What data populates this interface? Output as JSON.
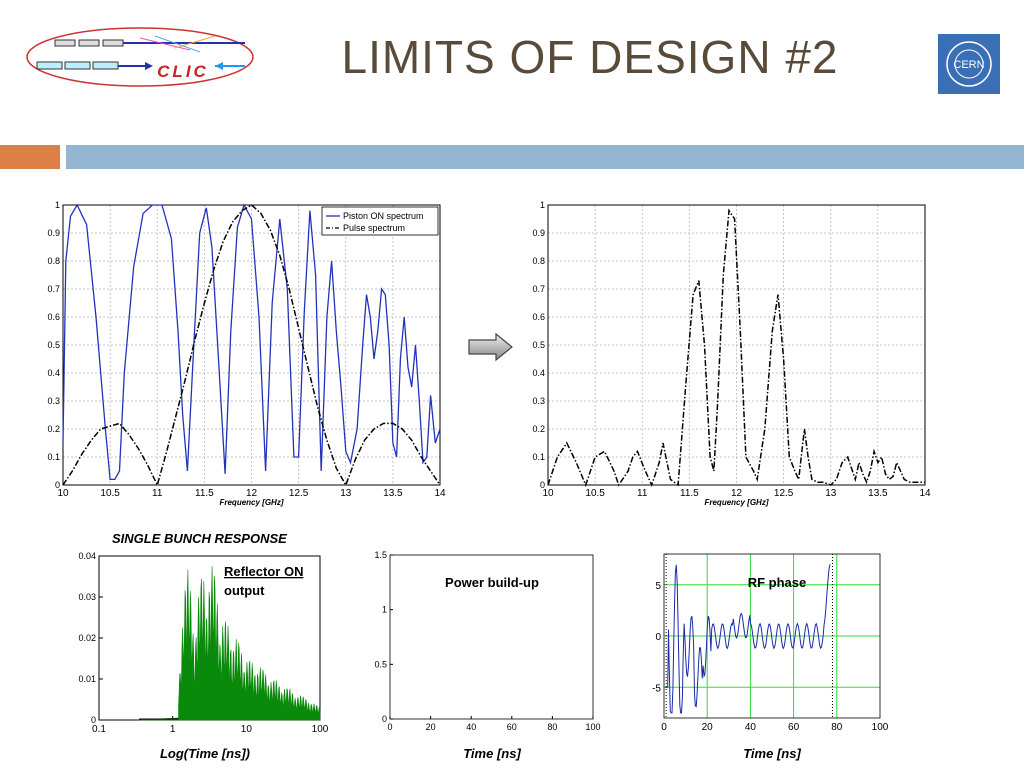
{
  "slide": {
    "title": "LIMITS OF DESIGN #2",
    "logo_left_text": "CLIC",
    "logo_right_text": "CERN",
    "single_bunch_label": "SINGLE BUNCH RESPONSE"
  },
  "colors": {
    "title": "#5a4a3a",
    "orange_accent": "#dd8047",
    "blue_accent": "#94b6d2",
    "piston_line": "#2233bb",
    "bunch_fill": "#0a8a0a",
    "rf_grid": "#33dd33"
  },
  "chart_data": [
    {
      "type": "line",
      "xlabel": "Frequency [GHz]",
      "xlim": [
        10,
        14
      ],
      "ylim": [
        0,
        1
      ],
      "xticks": [
        "10",
        "10.5",
        "11",
        "11.5",
        "12",
        "12.5",
        "13",
        "13.5",
        "14"
      ],
      "yticks": [
        "0",
        "0.1",
        "0.2",
        "0.3",
        "0.4",
        "0.5",
        "0.6",
        "0.7",
        "0.8",
        "0.9",
        "1"
      ],
      "grid": true,
      "legend_position": "top-right",
      "series": [
        {
          "name": "Piston ON spectrum",
          "x": [
            10.0,
            10.03,
            10.08,
            10.15,
            10.25,
            10.35,
            10.45,
            10.5,
            10.55,
            10.6,
            10.65,
            10.75,
            10.85,
            10.95,
            11.05,
            11.15,
            11.22,
            11.27,
            11.32,
            11.38,
            11.45,
            11.52,
            11.58,
            11.65,
            11.72,
            11.78,
            11.85,
            11.92,
            12.0,
            12.08,
            12.15,
            12.22,
            12.3,
            12.38,
            12.45,
            12.5,
            12.56,
            12.62,
            12.68,
            12.74,
            12.8,
            12.85,
            12.9,
            12.95,
            13.0,
            13.05,
            13.12,
            13.18,
            13.22,
            13.26,
            13.3,
            13.34,
            13.38,
            13.42,
            13.46,
            13.5,
            13.54,
            13.58,
            13.62,
            13.66,
            13.7,
            13.74,
            13.78,
            13.82,
            13.86,
            13.9,
            13.95,
            14.0
          ],
          "y": [
            0.15,
            0.8,
            0.96,
            1.0,
            0.93,
            0.6,
            0.2,
            0.02,
            0.02,
            0.05,
            0.4,
            0.78,
            0.97,
            1.0,
            1.0,
            0.88,
            0.55,
            0.25,
            0.05,
            0.45,
            0.9,
            0.99,
            0.85,
            0.45,
            0.04,
            0.55,
            0.92,
            1.0,
            0.95,
            0.6,
            0.05,
            0.65,
            0.95,
            0.7,
            0.1,
            0.1,
            0.62,
            0.98,
            0.75,
            0.05,
            0.6,
            0.8,
            0.55,
            0.35,
            0.12,
            0.08,
            0.2,
            0.5,
            0.68,
            0.6,
            0.45,
            0.55,
            0.7,
            0.68,
            0.5,
            0.15,
            0.1,
            0.45,
            0.6,
            0.42,
            0.35,
            0.5,
            0.3,
            0.08,
            0.1,
            0.32,
            0.15,
            0.2
          ]
        },
        {
          "name": "Pulse spectrum",
          "x": [
            10.0,
            10.1,
            10.2,
            10.3,
            10.4,
            10.5,
            10.6,
            10.7,
            10.8,
            10.9,
            11.0,
            11.1,
            11.2,
            11.3,
            11.4,
            11.5,
            11.6,
            11.7,
            11.8,
            11.9,
            12.0,
            12.1,
            12.2,
            12.3,
            12.4,
            12.5,
            12.6,
            12.7,
            12.8,
            12.9,
            13.0,
            13.1,
            13.2,
            13.3,
            13.4,
            13.5,
            13.6,
            13.7,
            13.8,
            13.9,
            14.0
          ],
          "y": [
            0.0,
            0.05,
            0.11,
            0.16,
            0.2,
            0.21,
            0.22,
            0.18,
            0.13,
            0.07,
            0.0,
            0.12,
            0.25,
            0.38,
            0.52,
            0.65,
            0.77,
            0.87,
            0.94,
            0.98,
            1.0,
            0.97,
            0.91,
            0.82,
            0.7,
            0.56,
            0.42,
            0.28,
            0.16,
            0.06,
            0.0,
            0.09,
            0.16,
            0.2,
            0.22,
            0.22,
            0.2,
            0.16,
            0.1,
            0.05,
            0.0
          ]
        }
      ]
    },
    {
      "type": "line",
      "xlabel": "Frequency [GHz]",
      "xlim": [
        10,
        14
      ],
      "ylim": [
        0,
        1
      ],
      "xticks": [
        "10",
        "10.5",
        "11",
        "11.5",
        "12",
        "12.5",
        "13",
        "13.5",
        "14"
      ],
      "yticks": [
        "0",
        "0.1",
        "0.2",
        "0.3",
        "0.4",
        "0.5",
        "0.6",
        "0.7",
        "0.8",
        "0.9",
        "1"
      ],
      "grid": true,
      "series": [
        {
          "x": [
            10.0,
            10.1,
            10.2,
            10.3,
            10.4,
            10.42,
            10.5,
            10.6,
            10.7,
            10.75,
            10.85,
            10.9,
            10.95,
            11.02,
            11.1,
            11.18,
            11.22,
            11.3,
            11.38,
            11.46,
            11.54,
            11.6,
            11.66,
            11.72,
            11.76,
            11.8,
            11.86,
            11.92,
            11.98,
            12.04,
            12.1,
            12.18,
            12.22,
            12.3,
            12.38,
            12.44,
            12.5,
            12.56,
            12.62,
            12.66,
            12.72,
            12.76,
            12.8,
            12.86,
            12.92,
            13.0,
            13.06,
            13.12,
            13.18,
            13.22,
            13.26,
            13.3,
            13.34,
            13.38,
            13.42,
            13.46,
            13.5,
            13.54,
            13.58,
            13.62,
            13.66,
            13.7,
            13.74,
            13.78,
            13.84,
            13.9,
            14.0
          ],
          "y": [
            0.0,
            0.1,
            0.15,
            0.08,
            0.0,
            0.02,
            0.1,
            0.12,
            0.05,
            0.0,
            0.05,
            0.1,
            0.12,
            0.06,
            0.0,
            0.08,
            0.15,
            0.02,
            0.0,
            0.35,
            0.68,
            0.73,
            0.5,
            0.1,
            0.05,
            0.3,
            0.75,
            0.98,
            0.95,
            0.55,
            0.1,
            0.05,
            0.02,
            0.2,
            0.55,
            0.68,
            0.45,
            0.1,
            0.05,
            0.02,
            0.2,
            0.1,
            0.02,
            0.01,
            0.01,
            0.0,
            0.02,
            0.08,
            0.1,
            0.06,
            0.02,
            0.08,
            0.04,
            0.01,
            0.05,
            0.12,
            0.08,
            0.1,
            0.04,
            0.02,
            0.03,
            0.08,
            0.05,
            0.02,
            0.01,
            0.01,
            0.01
          ]
        }
      ]
    },
    {
      "type": "area",
      "xlabel": "Log(Time [ns])",
      "xscale": "log",
      "xlim": [
        0.1,
        100
      ],
      "ylim": [
        0,
        0.04
      ],
      "xticks": [
        "0.1",
        "1",
        "10",
        "100"
      ],
      "yticks": [
        "0",
        "0.01",
        "0.02",
        "0.03",
        "0.04"
      ],
      "annotation": "Reflector ON output"
    },
    {
      "type": "line",
      "title": "Power build-up",
      "xlabel": "Time [ns]",
      "xlim": [
        0,
        100
      ],
      "ylim": [
        0,
        1.5
      ],
      "xticks": [
        "0",
        "20",
        "40",
        "60",
        "80",
        "100"
      ],
      "yticks": [
        "0",
        "0.5",
        "1",
        "1.5"
      ]
    },
    {
      "type": "line",
      "title": "RF phase",
      "xlabel": "Time [ns]",
      "xlim": [
        0,
        100
      ],
      "ylim": [
        -8,
        8
      ],
      "xticks": [
        "0",
        "20",
        "40",
        "60",
        "80",
        "100"
      ],
      "yticks": [
        "-5",
        "0",
        "5"
      ],
      "grid": true
    }
  ]
}
